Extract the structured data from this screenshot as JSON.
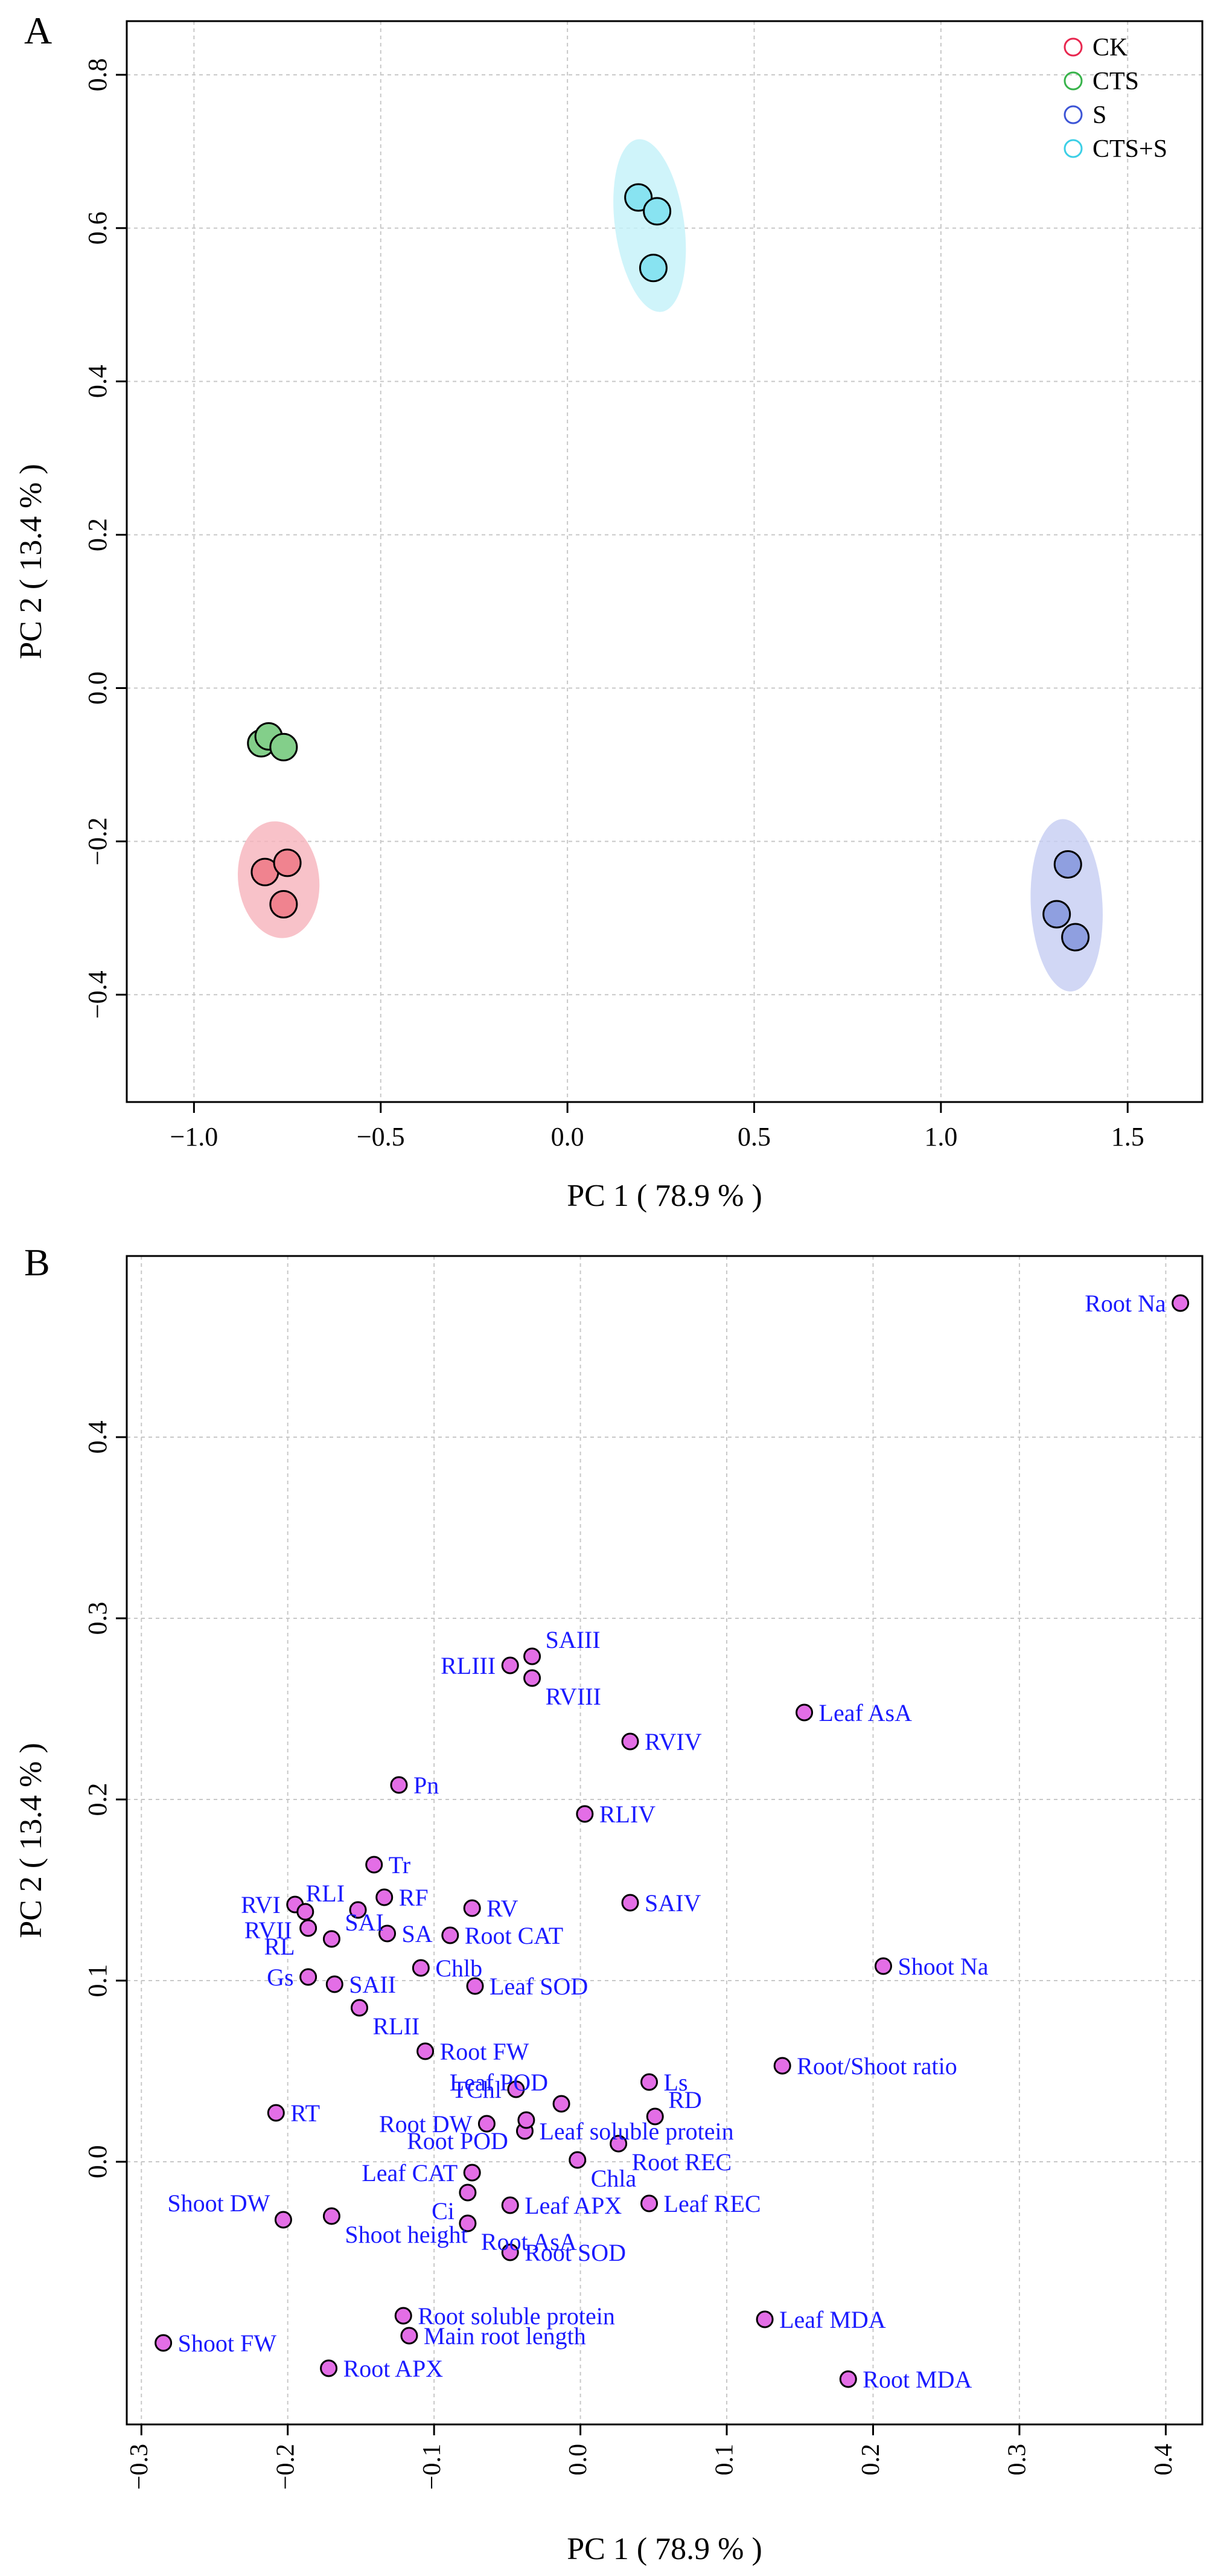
{
  "chart_data": [
    {
      "panel_label": "A",
      "type": "scatter",
      "xlabel": "PC 1 ( 78.9 % )",
      "ylabel": "PC 2 ( 13.4 % )",
      "xlim": [
        -1.18,
        1.7
      ],
      "ylim": [
        -0.54,
        0.87
      ],
      "xticks": [
        -1.0,
        -0.5,
        0.0,
        0.5,
        1.0,
        1.5
      ],
      "xtick_labels": [
        "−1.0",
        "−0.5",
        "0.0",
        "0.5",
        "1.0",
        "1.5"
      ],
      "yticks": [
        -0.4,
        -0.2,
        0.0,
        0.2,
        0.4,
        0.6,
        0.8
      ],
      "ytick_labels": [
        "−0.4",
        "−0.2",
        "0.0",
        "0.2",
        "0.4",
        "0.6",
        "0.8"
      ],
      "grid": true,
      "legend_position": "top-right",
      "series": [
        {
          "name": "CK",
          "color": "#e8274f",
          "fill": "#f0838f",
          "ellipse": "#f6b3bb",
          "points": [
            [
              -0.81,
              -0.24
            ],
            [
              -0.75,
              -0.228
            ],
            [
              -0.76,
              -0.282
            ]
          ]
        },
        {
          "name": "CTS",
          "color": "#37b34a",
          "fill": "#83cf8a",
          "ellipse": null,
          "points": [
            [
              -0.82,
              -0.072
            ],
            [
              -0.8,
              -0.063
            ],
            [
              -0.76,
              -0.077
            ]
          ]
        },
        {
          "name": "S",
          "color": "#3d55d6",
          "fill": "#8f9fe0",
          "ellipse": "#c5cdf3",
          "points": [
            [
              1.31,
              -0.295
            ],
            [
              1.34,
              -0.23
            ],
            [
              1.36,
              -0.325
            ]
          ]
        },
        {
          "name": "CTS+S",
          "color": "#3ccfe6",
          "fill": "#88e3f1",
          "ellipse": "#c3f1f9",
          "points": [
            [
              0.19,
              0.64
            ],
            [
              0.24,
              0.622
            ],
            [
              0.23,
              0.548
            ]
          ]
        }
      ]
    },
    {
      "panel_label": "B",
      "type": "scatter",
      "xlabel": "PC 1 ( 78.9 % )",
      "ylabel": "PC 2 ( 13.4 % )",
      "xlim": [
        -0.31,
        0.425
      ],
      "ylim": [
        -0.145,
        0.5
      ],
      "xticks": [
        -0.3,
        -0.2,
        -0.1,
        0.0,
        0.1,
        0.2,
        0.3,
        0.4
      ],
      "xtick_labels": [
        "−0.3",
        "−0.2",
        "−0.1",
        "0.0",
        "0.1",
        "0.2",
        "0.3",
        "0.4"
      ],
      "yticks": [
        0.0,
        0.1,
        0.2,
        0.3,
        0.4
      ],
      "ytick_labels": [
        "0.0",
        "0.1",
        "0.2",
        "0.3",
        "0.4"
      ],
      "grid": true,
      "point_color": "#e36ee6",
      "label_color": "#1a1aff",
      "points": [
        {
          "label": "Root Na",
          "x": 0.41,
          "y": 0.474,
          "pos": "left"
        },
        {
          "label": "SAIII",
          "x": -0.033,
          "y": 0.279,
          "pos": "upper-right"
        },
        {
          "label": "RLIII",
          "x": -0.048,
          "y": 0.274,
          "pos": "left"
        },
        {
          "label": "RVIII",
          "x": -0.033,
          "y": 0.267,
          "pos": "lower-right"
        },
        {
          "label": "Leaf AsA",
          "x": 0.153,
          "y": 0.248,
          "pos": "right"
        },
        {
          "label": "RVIV",
          "x": 0.034,
          "y": 0.232,
          "pos": "right"
        },
        {
          "label": "Pn",
          "x": -0.124,
          "y": 0.208,
          "pos": "right"
        },
        {
          "label": "RLIV",
          "x": 0.003,
          "y": 0.192,
          "pos": "right"
        },
        {
          "label": "Tr",
          "x": -0.141,
          "y": 0.164,
          "pos": "right"
        },
        {
          "label": "RF",
          "x": -0.134,
          "y": 0.146,
          "pos": "right"
        },
        {
          "label": "RVI",
          "x": -0.195,
          "y": 0.142,
          "pos": "left"
        },
        {
          "label": "RLI",
          "x": -0.152,
          "y": 0.139,
          "pos": "upper-left"
        },
        {
          "label": "RV",
          "x": -0.074,
          "y": 0.14,
          "pos": "right"
        },
        {
          "label": "SAIV",
          "x": 0.034,
          "y": 0.143,
          "pos": "right"
        },
        {
          "label": "RVII",
          "x": -0.188,
          "y": 0.138,
          "pos": "lower-left"
        },
        {
          "label": "SAI",
          "x": -0.17,
          "y": 0.123,
          "pos": "upper-right"
        },
        {
          "label": "SA",
          "x": -0.132,
          "y": 0.126,
          "pos": "right"
        },
        {
          "label": "Root CAT",
          "x": -0.089,
          "y": 0.125,
          "pos": "right"
        },
        {
          "label": "RL",
          "x": -0.186,
          "y": 0.129,
          "pos": "lower-left"
        },
        {
          "label": "Shoot Na",
          "x": 0.207,
          "y": 0.108,
          "pos": "right"
        },
        {
          "label": "Chlb",
          "x": -0.109,
          "y": 0.107,
          "pos": "right"
        },
        {
          "label": "Gs",
          "x": -0.186,
          "y": 0.102,
          "pos": "left"
        },
        {
          "label": "SAII",
          "x": -0.168,
          "y": 0.098,
          "pos": "right"
        },
        {
          "label": "Leaf SOD",
          "x": -0.072,
          "y": 0.097,
          "pos": "right"
        },
        {
          "label": "RLII",
          "x": -0.151,
          "y": 0.085,
          "pos": "lower-right"
        },
        {
          "label": "Root FW",
          "x": -0.106,
          "y": 0.061,
          "pos": "right"
        },
        {
          "label": "Root/Shoot ratio",
          "x": 0.138,
          "y": 0.053,
          "pos": "right"
        },
        {
          "label": "Leaf POD",
          "x": -0.013,
          "y": 0.032,
          "pos": "upper-left-far"
        },
        {
          "label": "Ls",
          "x": 0.047,
          "y": 0.044,
          "pos": "right"
        },
        {
          "label": "TChl",
          "x": -0.044,
          "y": 0.04,
          "pos": "left"
        },
        {
          "label": "RT",
          "x": -0.208,
          "y": 0.027,
          "pos": "right"
        },
        {
          "label": "RD",
          "x": 0.051,
          "y": 0.025,
          "pos": "upper-right"
        },
        {
          "label": "Root DW",
          "x": -0.064,
          "y": 0.021,
          "pos": "left"
        },
        {
          "label": "Leaf soluble protein",
          "x": -0.038,
          "y": 0.017,
          "pos": "right"
        },
        {
          "label": "Root REC",
          "x": 0.026,
          "y": 0.01,
          "pos": "lower-right"
        },
        {
          "label": "Root POD",
          "x": -0.037,
          "y": 0.023,
          "pos": "lower-left-far"
        },
        {
          "label": "Chla",
          "x": -0.002,
          "y": 0.001,
          "pos": "lower-right"
        },
        {
          "label": "Leaf CAT",
          "x": -0.074,
          "y": -0.006,
          "pos": "left"
        },
        {
          "label": "Ci",
          "x": -0.077,
          "y": -0.017,
          "pos": "lower-left"
        },
        {
          "label": "Leaf APX",
          "x": -0.048,
          "y": -0.024,
          "pos": "right"
        },
        {
          "label": "Leaf REC",
          "x": 0.047,
          "y": -0.023,
          "pos": "right"
        },
        {
          "label": "Shoot DW",
          "x": -0.203,
          "y": -0.032,
          "pos": "upper-left"
        },
        {
          "label": "Shoot height",
          "x": -0.17,
          "y": -0.03,
          "pos": "lower-right"
        },
        {
          "label": "Root AsA",
          "x": -0.077,
          "y": -0.034,
          "pos": "lower-right"
        },
        {
          "label": "Root SOD",
          "x": -0.048,
          "y": -0.05,
          "pos": "right"
        },
        {
          "label": "Root soluble protein",
          "x": -0.121,
          "y": -0.085,
          "pos": "right"
        },
        {
          "label": "Leaf MDA",
          "x": 0.126,
          "y": -0.087,
          "pos": "right"
        },
        {
          "label": "Main root length",
          "x": -0.117,
          "y": -0.096,
          "pos": "right"
        },
        {
          "label": "Shoot FW",
          "x": -0.285,
          "y": -0.1,
          "pos": "right"
        },
        {
          "label": "Root APX",
          "x": -0.172,
          "y": -0.114,
          "pos": "right"
        },
        {
          "label": "Root MDA",
          "x": 0.183,
          "y": -0.12,
          "pos": "right"
        }
      ]
    }
  ]
}
